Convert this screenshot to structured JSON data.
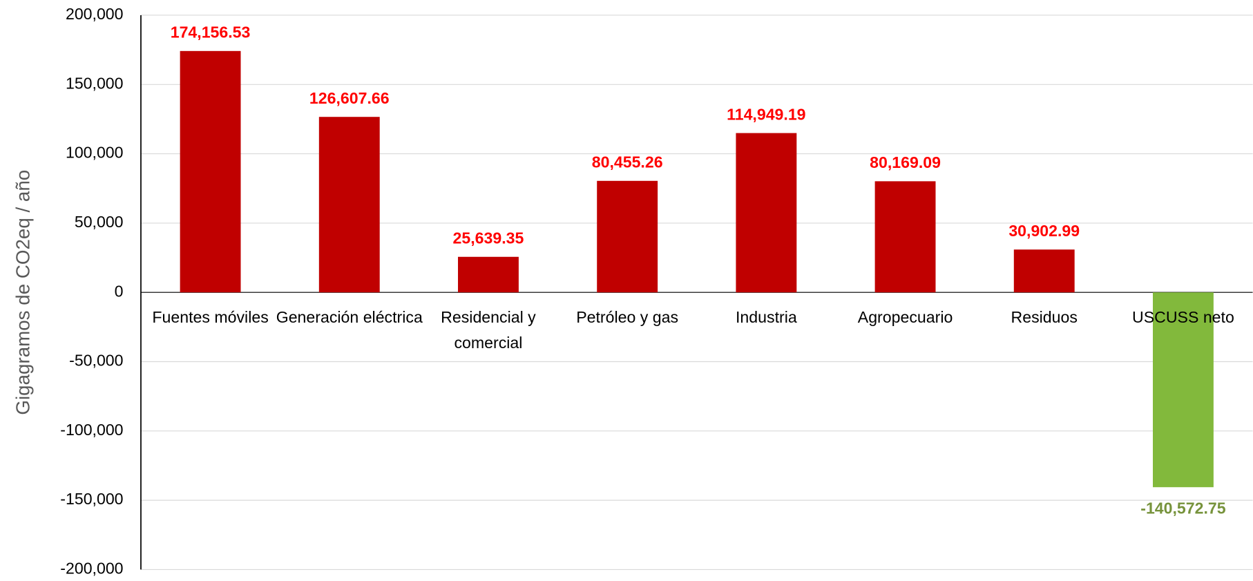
{
  "chart_data": {
    "type": "bar",
    "y_label": "Gigagramos de CO2eq / año",
    "categories": [
      "Fuentes móviles",
      "Generación eléctrica",
      "Residencial y comercial",
      "Petróleo y gas",
      "Industria",
      "Agropecuario",
      "Residuos",
      "USCUSS neto"
    ],
    "values": [
      174156.53,
      126607.66,
      25639.35,
      80455.26,
      114949.19,
      80169.09,
      30902.99,
      -140572.75
    ],
    "value_labels": [
      "174,156.53",
      "126,607.66",
      "25,639.35",
      "80,455.26",
      "114,949.19",
      "80,169.09",
      "30,902.99",
      "-140,572.75"
    ],
    "colors": [
      "#c00000",
      "#c00000",
      "#c00000",
      "#c00000",
      "#c00000",
      "#c00000",
      "#c00000",
      "#82b93c"
    ],
    "label_colors": [
      "#ff0000",
      "#ff0000",
      "#ff0000",
      "#ff0000",
      "#ff0000",
      "#ff0000",
      "#ff0000",
      "#77933c"
    ],
    "ylim": [
      -200000,
      200000
    ],
    "yticks": [
      {
        "value": -200000,
        "label": "-200,000"
      },
      {
        "value": -150000,
        "label": "-150,000"
      },
      {
        "value": -100000,
        "label": "-100,000"
      },
      {
        "value": -50000,
        "label": "-50,000"
      },
      0,
      {
        "value": 50000,
        "label": "50,000"
      },
      {
        "value": 100000,
        "label": "100,000"
      },
      {
        "value": 150000,
        "label": "150,000"
      },
      {
        "value": 200000,
        "label": "200,000"
      }
    ],
    "grid": true
  }
}
